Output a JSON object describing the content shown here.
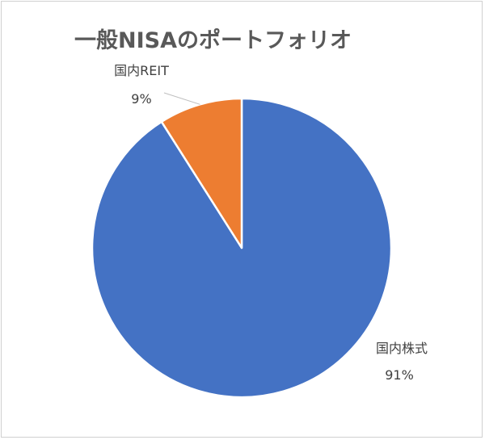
{
  "chart_data": {
    "type": "pie",
    "title": "一般NISAのポートフォリオ",
    "labels": [
      "国内株式",
      "国内REIT"
    ],
    "values": [
      91,
      9
    ],
    "percent_labels": [
      "91%",
      "9%"
    ],
    "colors": [
      "#4472C4",
      "#ED7D31"
    ],
    "legend": "none"
  }
}
